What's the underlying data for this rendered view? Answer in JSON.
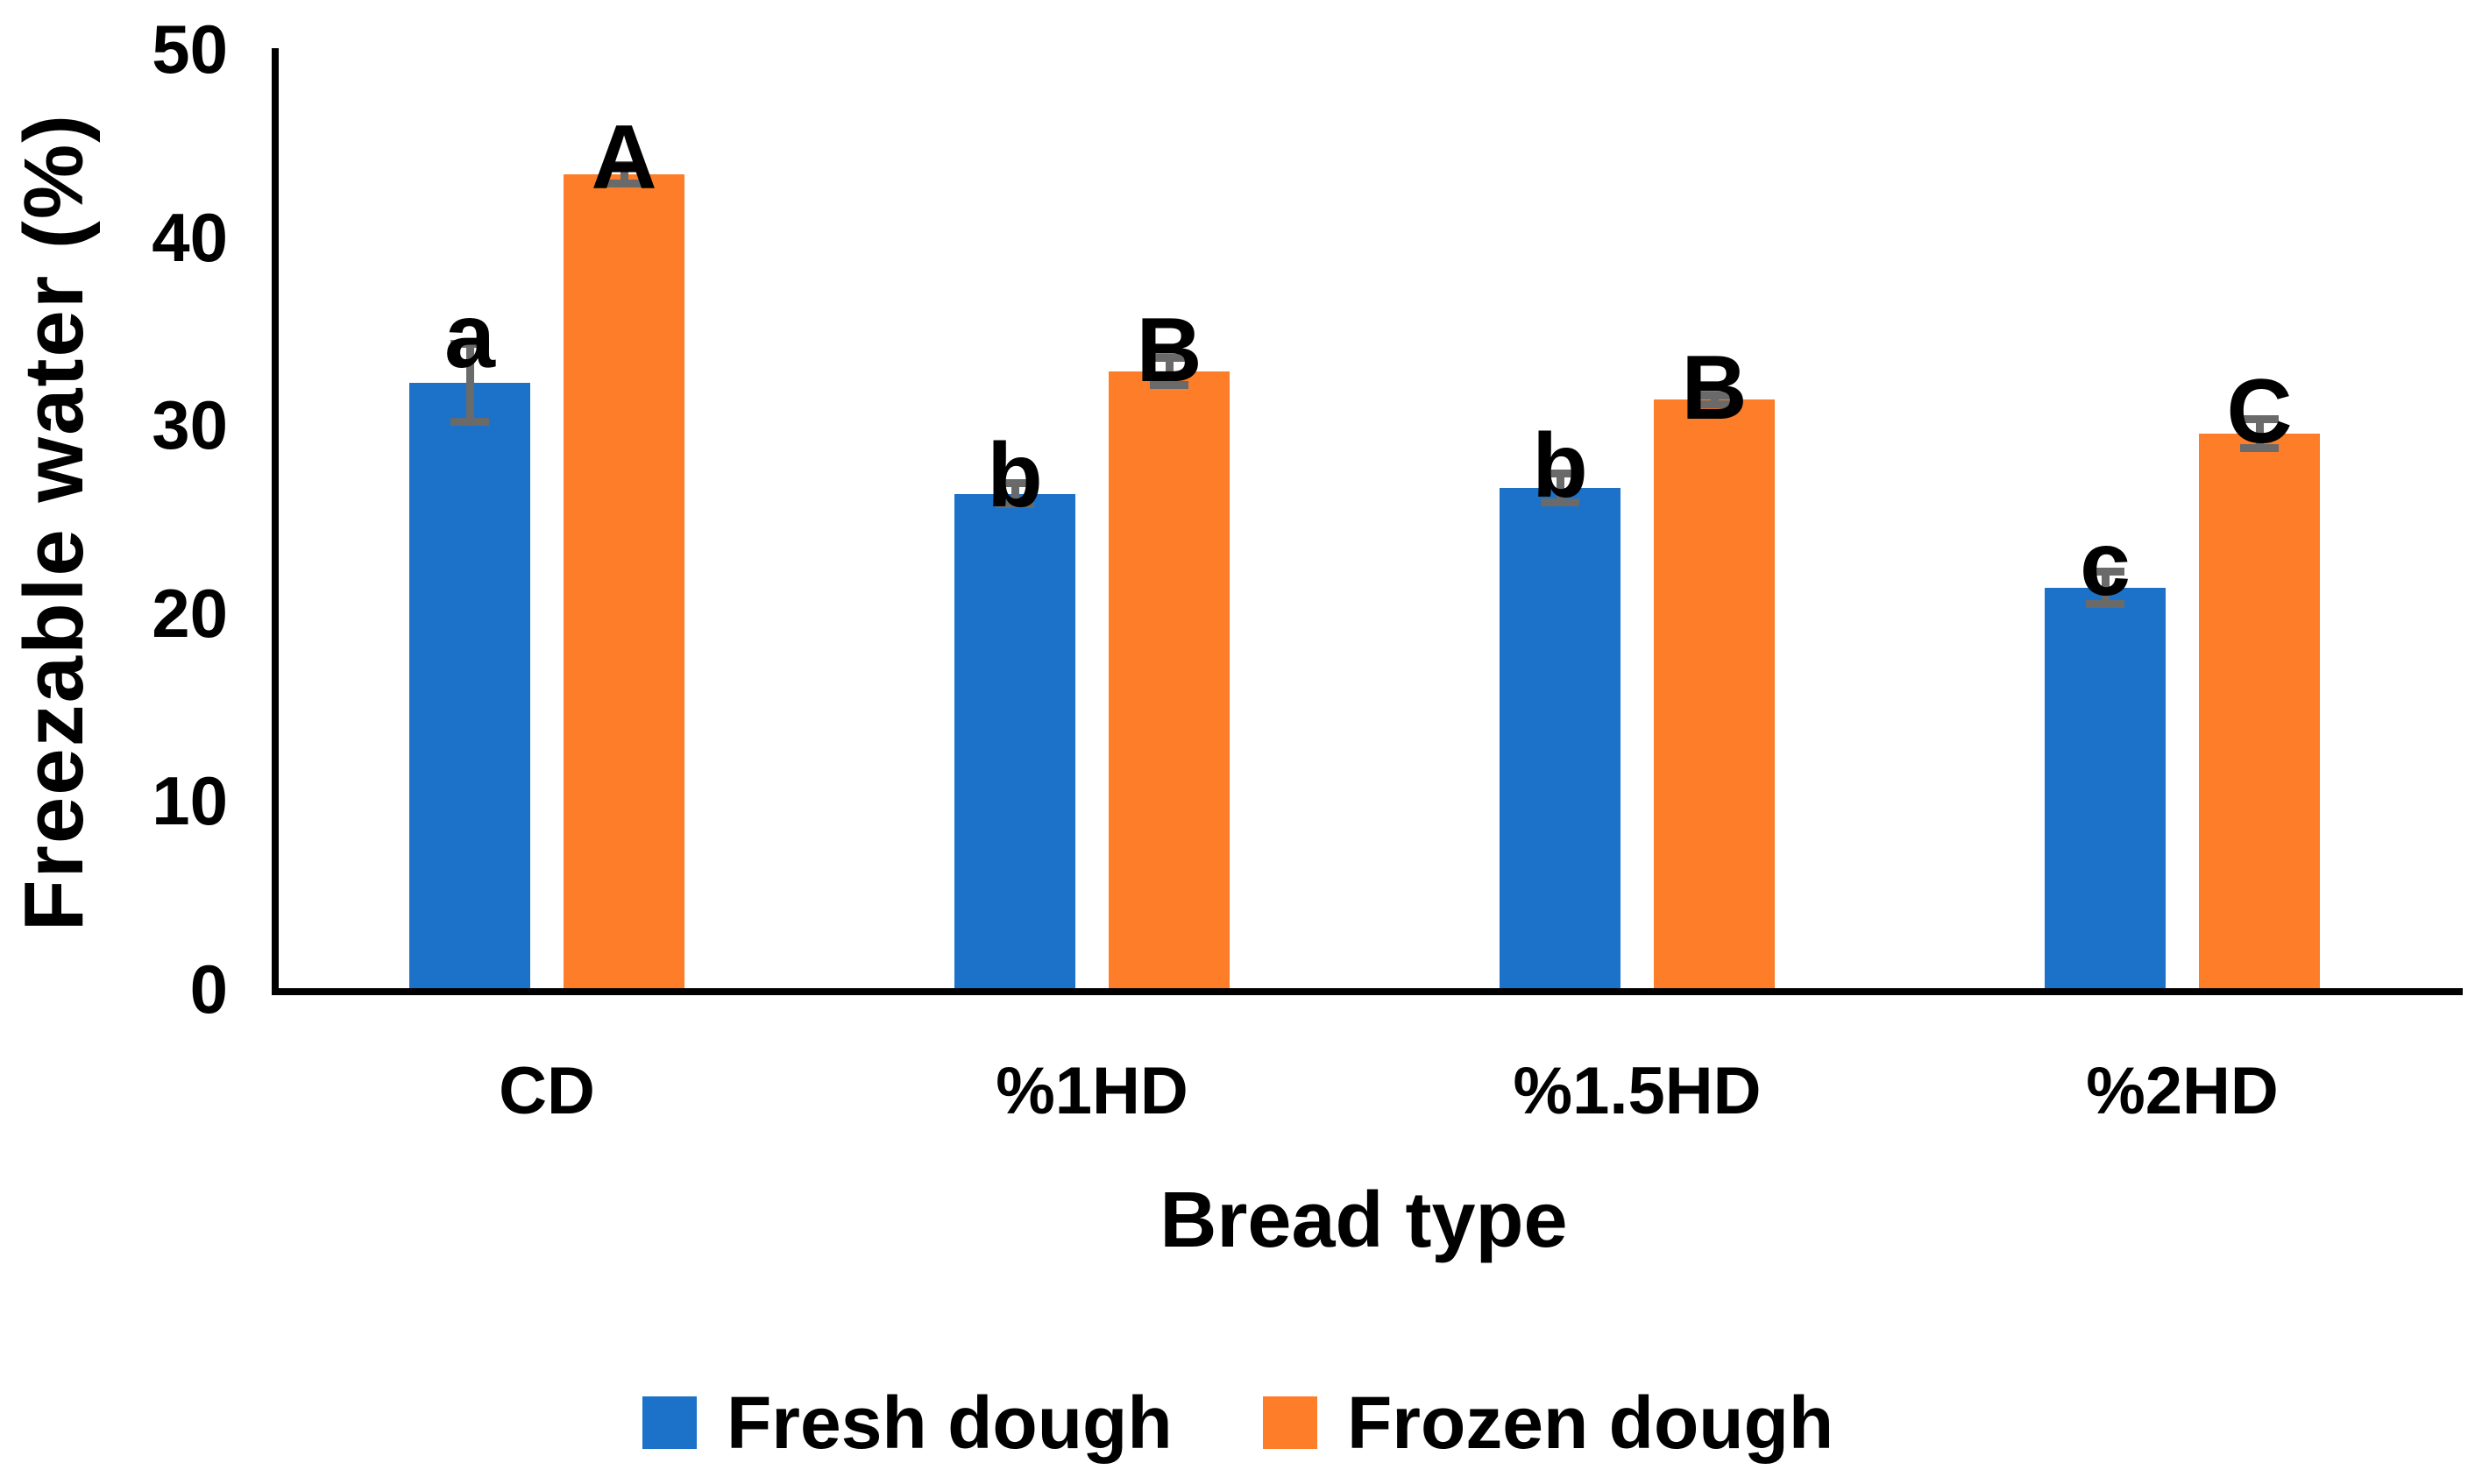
{
  "chart_data": {
    "type": "bar",
    "title": "",
    "xlabel": "Bread type",
    "ylabel": "Freezable water (%)",
    "categories": [
      "CD",
      "%1HD",
      "%1.5HD",
      "%2HD"
    ],
    "series": [
      {
        "name": "Fresh dough",
        "color": "#1B72C8",
        "values": [
          32.2,
          26.3,
          26.6,
          21.3
        ],
        "errors": [
          2.1,
          0.6,
          0.8,
          0.9
        ],
        "significance_letters": [
          "a",
          "b",
          "b",
          "c"
        ]
      },
      {
        "name": "Frozen dough",
        "color": "#FD7D28",
        "values": [
          43.3,
          32.8,
          31.3,
          29.5
        ],
        "errors": [
          0.5,
          0.75,
          0.25,
          0.8
        ],
        "significance_letters": [
          "A",
          "B",
          "B",
          "C"
        ]
      }
    ],
    "ylim": [
      0,
      50
    ],
    "yticks": [
      0,
      10,
      20,
      30,
      40,
      50
    ],
    "grid": false,
    "legend_position": "bottom",
    "error_bar_color": "#6A6A6A",
    "axis_color": "#000000",
    "background_color": "#FFFFFF"
  }
}
